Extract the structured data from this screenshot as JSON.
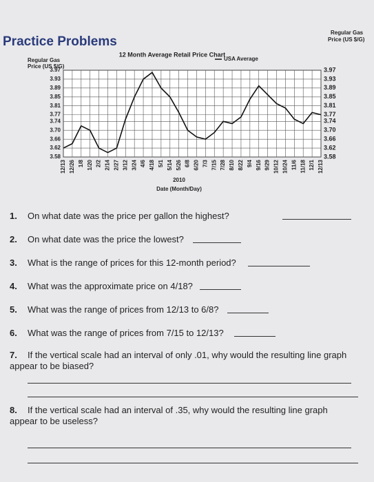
{
  "header": {
    "title": "Practice Problems"
  },
  "chart_data": {
    "type": "line",
    "title": "12 Month Average Retail Price Chart",
    "ylabel": [
      "Regular Gas",
      "Price (US $/G)"
    ],
    "xlabel": "Date (Month/Day)",
    "annotation": "2010",
    "categories": [
      "12/13",
      "12/26",
      "1/8",
      "1/20",
      "2/2",
      "2/14",
      "2/27",
      "3/12",
      "3/24",
      "4/6",
      "4/18",
      "5/1",
      "5/14",
      "5/26",
      "6/8",
      "6/20",
      "7/3",
      "7/15",
      "7/28",
      "8/10",
      "8/22",
      "9/4",
      "9/16",
      "9/29",
      "10/12",
      "10/24",
      "11/6",
      "11/18",
      "12/1",
      "12/13"
    ],
    "series": [
      {
        "name": "USA Average",
        "color": "#111111",
        "values": [
          3.62,
          3.64,
          3.72,
          3.7,
          3.62,
          3.6,
          3.62,
          3.75,
          3.85,
          3.93,
          3.96,
          3.89,
          3.85,
          3.78,
          3.7,
          3.67,
          3.66,
          3.69,
          3.74,
          3.73,
          3.76,
          3.84,
          3.9,
          3.86,
          3.82,
          3.8,
          3.75,
          3.73,
          3.78,
          3.77
        ]
      }
    ],
    "ylim": [
      3.58,
      3.97
    ],
    "yticks": [
      3.58,
      3.62,
      3.66,
      {
        "value": 3.7,
        "label": "3.70"
      },
      3.74,
      3.77,
      3.81,
      3.85,
      3.89,
      3.93,
      3.97
    ],
    "grid": true
  },
  "questions": [
    {
      "number": "1.",
      "text": "On what date was the price per gallon the highest?"
    },
    {
      "number": "2.",
      "text": "On what date was the price the lowest?"
    },
    {
      "number": "3.",
      "text": "What is the range of prices for this 12-month period?"
    },
    {
      "number": "4.",
      "text": "What was the approximate price on 4/18?"
    },
    {
      "number": "5.",
      "text": "What was the range of prices from 12/13 to 6/8?"
    },
    {
      "number": "6.",
      "text": "What was the range of prices from 7/15 to 12/13?"
    },
    {
      "number": "7.",
      "text": "If the vertical scale had an interval of only .01, why would the resulting line graph appear to be biased?"
    },
    {
      "number": "8.",
      "text": "If the vertical scale had an interval of .35, why would the resulting line graph appear to be useless?"
    }
  ]
}
